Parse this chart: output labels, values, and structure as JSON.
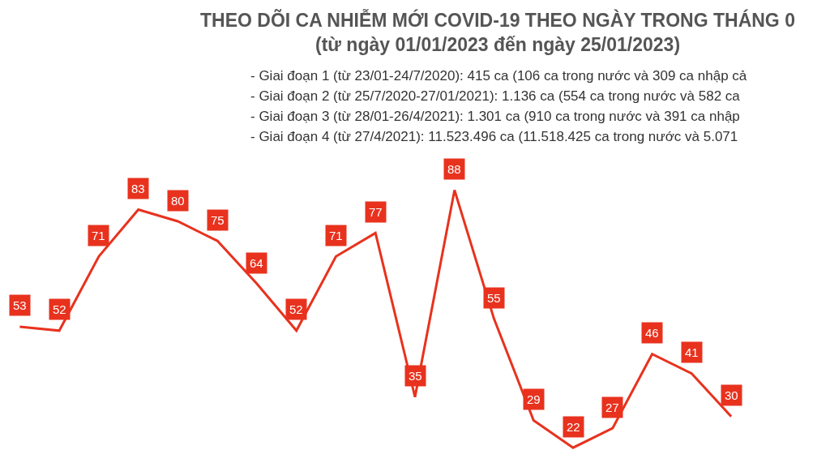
{
  "chart_data": {
    "type": "line",
    "title": "THEO DÕI CA NHIỄM MỚI COVID-19 THEO NGÀY TRONG THÁNG 0",
    "subtitle": "(từ ngày 01/01/2023 đến ngày 25/01/2023)",
    "annotations": [
      "- Giai đoạn 1 (từ 23/01-24/7/2020): 415 ca (106 ca trong nước và 309 ca nhập cả",
      "- Giai đoạn 2 (từ 25/7/2020-27/01/2021): 1.136 ca (554 ca trong nước và 582 ca",
      "- Giai đoạn 3 (từ 28/01-26/4/2021): 1.301 ca (910 ca trong nước và 391 ca nhập",
      "- Giai đoạn 4 (từ 27/4/2021): 11.523.496 ca (11.518.425 ca trong nước và 5.071"
    ],
    "categories": [
      null,
      null,
      null,
      null,
      null,
      null,
      null,
      null,
      null,
      null,
      null,
      null,
      null,
      null,
      null,
      null,
      null,
      null,
      null
    ],
    "values": [
      53,
      52,
      71,
      83,
      80,
      75,
      64,
      52,
      71,
      77,
      35,
      88,
      55,
      29,
      22,
      27,
      46,
      41,
      30
    ],
    "color": "#e8321e",
    "data_labels": true,
    "marker": "none",
    "line_style": "solid"
  }
}
